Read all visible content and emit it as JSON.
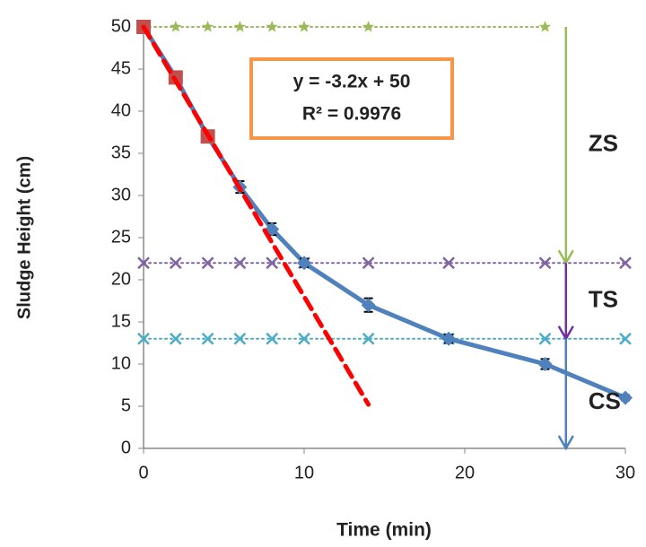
{
  "chart_data": {
    "type": "line",
    "x_label": "Time (min)",
    "y_label": "Sludge Height (cm)",
    "xlim": [
      0,
      30
    ],
    "xticks": [
      0,
      10,
      20,
      30
    ],
    "ylim": [
      0,
      50
    ],
    "yticks": [
      0,
      5,
      10,
      15,
      20,
      25,
      30,
      35,
      40,
      45,
      50
    ],
    "series": [
      {
        "color": "#9bbb59",
        "line": "dotted",
        "marker": "star",
        "x": [
          0,
          2,
          4,
          6,
          8,
          10,
          14,
          25
        ],
        "values": [
          50,
          50,
          50,
          50,
          50,
          50,
          50,
          50
        ]
      },
      {
        "color": "#8064a2",
        "line": "dotted",
        "marker": "cross",
        "x": [
          0,
          2,
          4,
          6,
          8,
          10,
          14,
          19,
          25,
          30
        ],
        "values": [
          22,
          22,
          22,
          22,
          22,
          22,
          22,
          22,
          22,
          22
        ]
      },
      {
        "color": "#4bacc6",
        "line": "dotted",
        "marker": "cross",
        "x": [
          0,
          2,
          4,
          6,
          8,
          10,
          14,
          19,
          25,
          30
        ],
        "values": [
          13,
          13,
          13,
          13,
          13,
          13,
          13,
          13,
          13,
          13
        ]
      },
      {
        "color": "#4f81bd",
        "line": "solid",
        "marker": "diamond",
        "x": [
          0,
          2,
          4,
          6,
          8,
          10,
          14,
          19,
          25,
          30
        ],
        "values": [
          50,
          44,
          37,
          31,
          26,
          22,
          17,
          13,
          10,
          6
        ],
        "errors": [
          0,
          0,
          0,
          0.7,
          0.7,
          0.5,
          0.8,
          0.5,
          0.6,
          0.3
        ]
      },
      {
        "color": "#c0504d",
        "line": "none",
        "marker": "square",
        "x": [
          0,
          2,
          4
        ],
        "values": [
          50,
          44,
          37
        ]
      },
      {
        "color": "#ff0000",
        "line": "dashed",
        "marker": "none",
        "x": [
          0,
          14
        ],
        "values": [
          50,
          5.2
        ]
      }
    ],
    "arrows": [
      {
        "label": "ZS",
        "x": 26.3,
        "from": 50,
        "to": 22,
        "color": "#9bbb59"
      },
      {
        "label": "TS",
        "x": 26.3,
        "from": 22,
        "to": 13,
        "color": "#7030a0"
      },
      {
        "label": "CS",
        "x": 26.3,
        "from": 13,
        "to": 0,
        "color": "#4f81bd"
      }
    ],
    "annotations": [
      {
        "text": "y = -3.2x + 50"
      },
      {
        "text": "R² = 0.9976"
      }
    ]
  }
}
